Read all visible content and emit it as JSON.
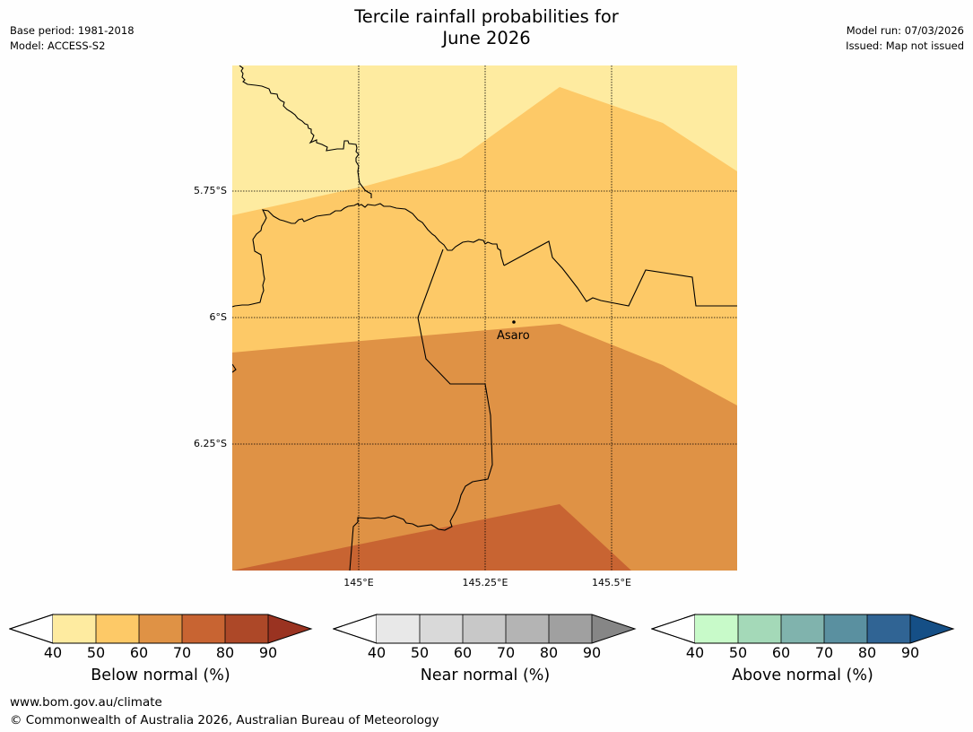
{
  "title": {
    "line1": "Tercile rainfall probabilities for",
    "line2": "June 2026"
  },
  "meta_left": {
    "base_period": "Base period: 1981-2018",
    "model": "Model: ACCESS-S2"
  },
  "meta_right": {
    "model_run": "Model run: 07/03/2026",
    "issued": "Issued: Map not issued"
  },
  "map": {
    "lat_labels": [
      "5.75°S",
      "6°S",
      "6.25°S"
    ],
    "lon_labels": [
      "145°E",
      "145.25°E",
      "145.5°E"
    ],
    "place_label": "Asaro",
    "zone_colors": [
      "#feeba0",
      "#fdc967",
      "#df9245",
      "#c86432"
    ],
    "border_color": "#000000"
  },
  "legends": [
    {
      "label": "Below normal (%)",
      "ticks": [
        "40",
        "50",
        "60",
        "70",
        "80",
        "90"
      ],
      "colors": [
        "#feeba0",
        "#fdc967",
        "#df9245",
        "#c86432",
        "#ad4828",
        "#9a3321"
      ]
    },
    {
      "label": "Near normal (%)",
      "ticks": [
        "40",
        "50",
        "60",
        "70",
        "80",
        "90"
      ],
      "colors": [
        "#e8e8e8",
        "#d9d9d9",
        "#c8c8c8",
        "#b4b4b4",
        "#a0a0a0",
        "#868686"
      ]
    },
    {
      "label": "Above normal (%)",
      "ticks": [
        "40",
        "50",
        "60",
        "70",
        "80",
        "90"
      ],
      "colors": [
        "#c8fac9",
        "#a4d9b8",
        "#80b3ad",
        "#5a90a0",
        "#306494",
        "#154f86"
      ]
    }
  ],
  "footer": {
    "url": "www.bom.gov.au/climate",
    "copyright": "© Commonwealth of Australia 2026, Australian Bureau of Meteorology"
  }
}
